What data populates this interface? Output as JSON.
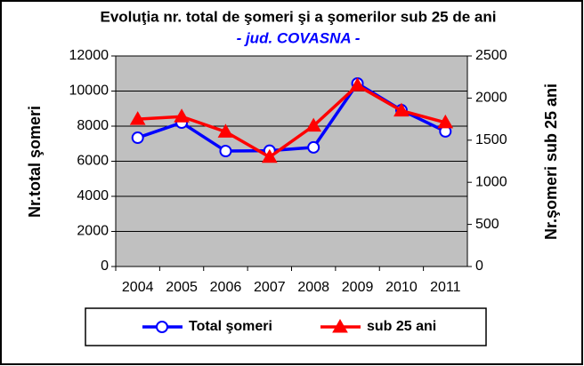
{
  "chart_data": {
    "type": "line",
    "title": "Evoluţia nr. total de şomeri şi a şomerilor sub 25 de ani",
    "subtitle": "- jud. COVASNA -",
    "y_label": "Nr.total şomeri",
    "y2_label": "Nr.şomeri sub 25 ani",
    "categories": [
      "2004",
      "2005",
      "2006",
      "2007",
      "2008",
      "2009",
      "2010",
      "2011"
    ],
    "series": [
      {
        "name": "Total şomeri",
        "color": "#0000ff",
        "marker": "circle",
        "values": [
          7340,
          8200,
          6580,
          6600,
          6790,
          10430,
          8910,
          7700
        ]
      },
      {
        "name": "sub 25 ani",
        "color": "#ff0000",
        "marker": "triangle",
        "axis": "y2",
        "values": [
          1750,
          1780,
          1600,
          1300,
          1670,
          2150,
          1850,
          1710
        ]
      }
    ],
    "ylim": [
      0,
      12000
    ],
    "yticks": [
      0,
      2000,
      4000,
      6000,
      8000,
      10000,
      12000
    ],
    "y2lim": [
      0,
      2500
    ],
    "y2ticks": [
      0,
      500,
      1000,
      1500,
      2000,
      2500
    ],
    "plot_background": "#c0c0c0"
  }
}
